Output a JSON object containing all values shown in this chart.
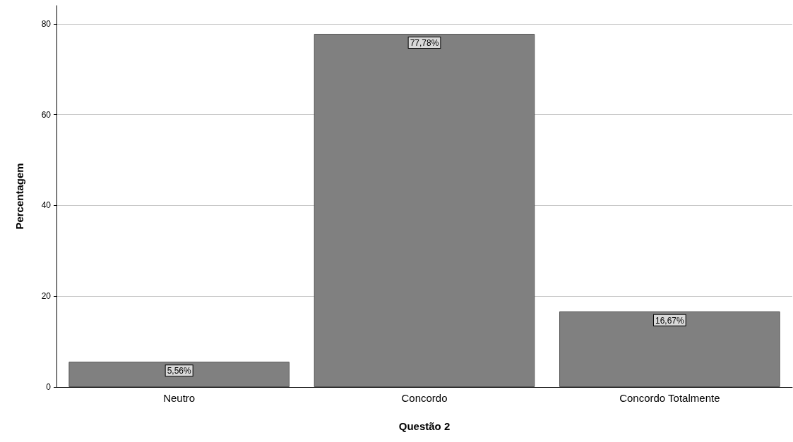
{
  "chart_data": {
    "type": "bar",
    "xlabel": "Questão 2",
    "ylabel": "Percentagem",
    "categories": [
      "Neutro",
      "Concordo",
      "Concordo Totalmente"
    ],
    "values": [
      5.56,
      77.78,
      16.67
    ],
    "value_labels": [
      "5,56%",
      "77,78%",
      "16,67%"
    ],
    "color": "#808080",
    "ylim": [
      0,
      84
    ],
    "yticks": [
      0,
      20,
      40,
      60,
      80
    ],
    "grid": "y"
  }
}
